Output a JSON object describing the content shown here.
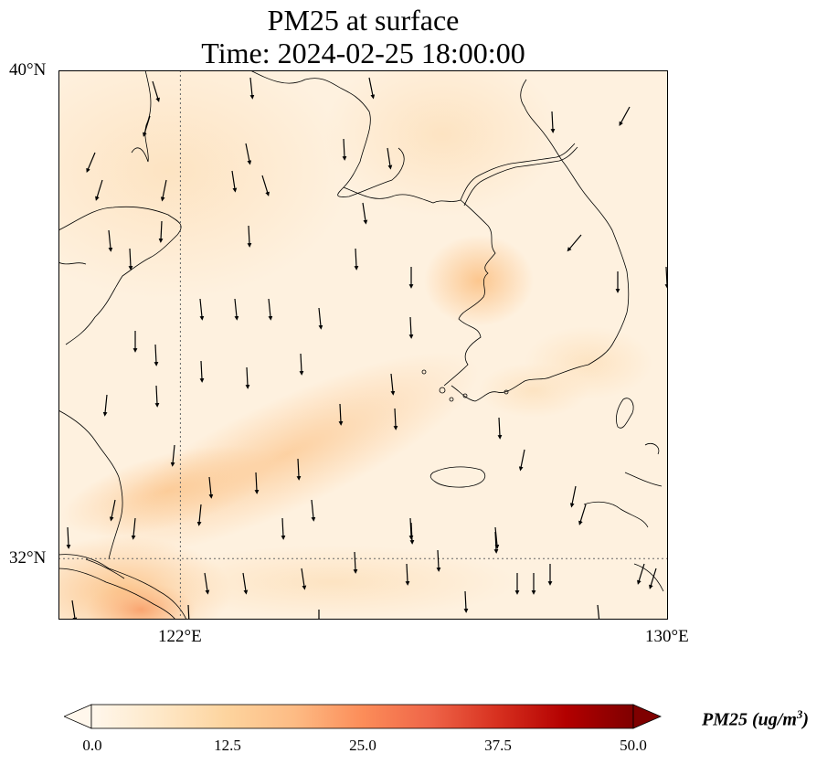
{
  "title": {
    "line1": "PM25 at surface",
    "line2": "Time: 2024-02-25 18:00:00"
  },
  "map": {
    "extent_lon": [
      120,
      130
    ],
    "extent_lat": [
      31,
      40
    ],
    "gridlines": {
      "lon": [
        122
      ],
      "lat": [
        32
      ]
    },
    "lat_labels": [
      "40°N",
      "32°N"
    ],
    "lon_labels": [
      "122°E",
      "130°E"
    ],
    "features": [
      "PM25 concentration field",
      "surface wind vectors",
      "coastlines"
    ]
  },
  "colorbar": {
    "label": "PM25 (ug/m",
    "label_sup": "3",
    "label_close": ")",
    "ticks": [
      "0.0",
      "12.5",
      "25.0",
      "37.5",
      "50.0"
    ],
    "range": [
      0,
      50
    ],
    "colormap": "OrRd",
    "colors": [
      "#fff7ec",
      "#fdd49e",
      "#fc8d59",
      "#d7301f",
      "#7f0000"
    ],
    "extend": "both"
  }
}
